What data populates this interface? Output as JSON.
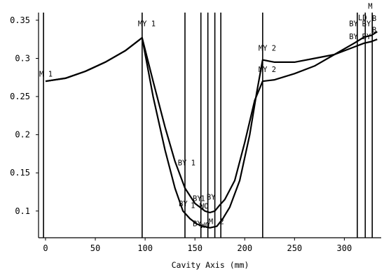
{
  "chart_data": {
    "type": "line",
    "title": "",
    "xlabel": "Cavity Axis (mm)",
    "ylabel": "",
    "xlim": [
      -7,
      337
    ],
    "ylim": [
      0.065,
      0.36
    ],
    "x_ticks": [
      "0",
      "50",
      "100",
      "150",
      "200",
      "250",
      "300"
    ],
    "x_tick_values": [
      0,
      50,
      100,
      150,
      200,
      250,
      300
    ],
    "y_ticks": [
      "0.1",
      "0.15",
      "0.2",
      "0.25",
      "0.3",
      "0.35"
    ],
    "y_tick_values": [
      0.1,
      0.15,
      0.2,
      0.25,
      0.3,
      0.35
    ],
    "grid": false,
    "series": [
      {
        "x": [
          0,
          20,
          40,
          60,
          80,
          97,
          108,
          120,
          130,
          140,
          150,
          155,
          160,
          165,
          170,
          175,
          180,
          190,
          200,
          210,
          218,
          230,
          250,
          270,
          290,
          310,
          320,
          327,
          333
        ],
        "y": [
          0.27,
          0.274,
          0.283,
          0.295,
          0.31,
          0.327,
          0.27,
          0.21,
          0.165,
          0.13,
          0.11,
          0.105,
          0.1,
          0.098,
          0.1,
          0.108,
          0.115,
          0.14,
          0.19,
          0.245,
          0.27,
          0.272,
          0.28,
          0.29,
          0.305,
          0.32,
          0.328,
          0.33,
          0.335
        ]
      },
      {
        "x": [
          0,
          20,
          40,
          60,
          80,
          97,
          108,
          120,
          130,
          138,
          145,
          152,
          158,
          165,
          172,
          178,
          185,
          195,
          205,
          212,
          218,
          230,
          250,
          270,
          290,
          310,
          320,
          327,
          333
        ],
        "y": [
          0.27,
          0.274,
          0.283,
          0.295,
          0.31,
          0.327,
          0.25,
          0.18,
          0.13,
          0.1,
          0.09,
          0.083,
          0.08,
          0.078,
          0.08,
          0.09,
          0.105,
          0.14,
          0.2,
          0.255,
          0.298,
          0.295,
          0.295,
          0.3,
          0.305,
          0.315,
          0.32,
          0.322,
          0.325
        ]
      }
    ],
    "vertical_lines": [
      -2,
      97,
      140,
      156,
      163,
      170,
      176,
      218,
      313,
      321,
      328
    ],
    "markers": [
      {
        "label": "M  1",
        "x": -2,
        "y": 0.276
      },
      {
        "label": "MY  1",
        "x": 97,
        "y": 0.342
      },
      {
        "label": "MY  2",
        "x": 218,
        "y": 0.31
      },
      {
        "label": "MY  2",
        "x": 218,
        "y": 0.282
      },
      {
        "label": "BY  1",
        "x": 137,
        "y": 0.16
      },
      {
        "label": "BY",
        "x": 138,
        "y": 0.106
      },
      {
        "label": "1",
        "x": 150,
        "y": 0.104
      },
      {
        "label": "BY",
        "x": 152,
        "y": 0.113
      },
      {
        "label": "1",
        "x": 160,
        "y": 0.113
      },
      {
        "label": "BY",
        "x": 166,
        "y": 0.115
      },
      {
        "label": "WO",
        "x": 159,
        "y": 0.103
      },
      {
        "label": "BY",
        "x": 152,
        "y": 0.08
      },
      {
        "label": "WO",
        "x": 160,
        "y": 0.078
      },
      {
        "label": "M",
        "x": 168,
        "y": 0.083
      },
      {
        "label": "2",
        "x": 179,
        "y": 0.083
      },
      {
        "label": "BY",
        "x": 309,
        "y": 0.342
      },
      {
        "label": "BY",
        "x": 309,
        "y": 0.325
      },
      {
        "label": "LD",
        "x": 318,
        "y": 0.35
      },
      {
        "label": "BY",
        "x": 322,
        "y": 0.342
      },
      {
        "label": "BY",
        "x": 322,
        "y": 0.325
      },
      {
        "label": "M",
        "x": 328,
        "y": 0.365
      },
      {
        "label": "B",
        "x": 332,
        "y": 0.349
      },
      {
        "label": "B",
        "x": 332,
        "y": 0.334
      }
    ]
  }
}
